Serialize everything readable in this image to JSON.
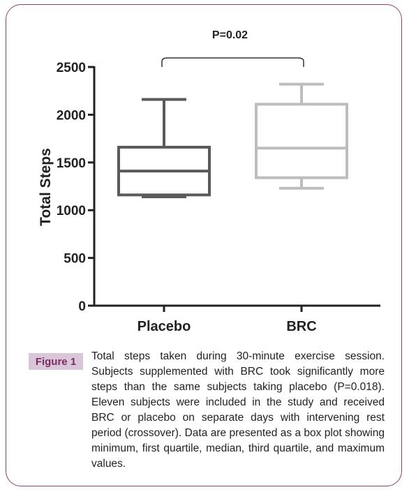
{
  "figure": {
    "label": "Figure 1",
    "caption": "Total steps taken during 30-minute exercise session. Subjects supplemented with BRC took significantly more steps than the same subjects taking placebo (P=0.018). Eleven subjects were included in the study and received BRC or placebo on separate days with intervening rest period (crossover). Data are presented as a box plot showing minimum, first quartile, median, third quartile, and maximum values."
  },
  "chart_data": {
    "type": "box",
    "ylabel": "Total Steps",
    "ylim": [
      0,
      2500
    ],
    "yticks": [
      "0",
      "500",
      "1000",
      "1500",
      "2000",
      "2500"
    ],
    "categories": [
      "Placebo",
      "BRC"
    ],
    "boxes": [
      {
        "category": "Placebo",
        "min": 1140,
        "q1": 1160,
        "median": 1410,
        "q3": 1660,
        "max": 2160
      },
      {
        "category": "BRC",
        "min": 1230,
        "q1": 1340,
        "median": 1650,
        "q3": 2110,
        "max": 2320
      }
    ],
    "annotation": "P=0.02",
    "colors": {
      "placebo": "#5a5a5a",
      "brc": "#bdbdbd",
      "axis": "#222222"
    }
  }
}
